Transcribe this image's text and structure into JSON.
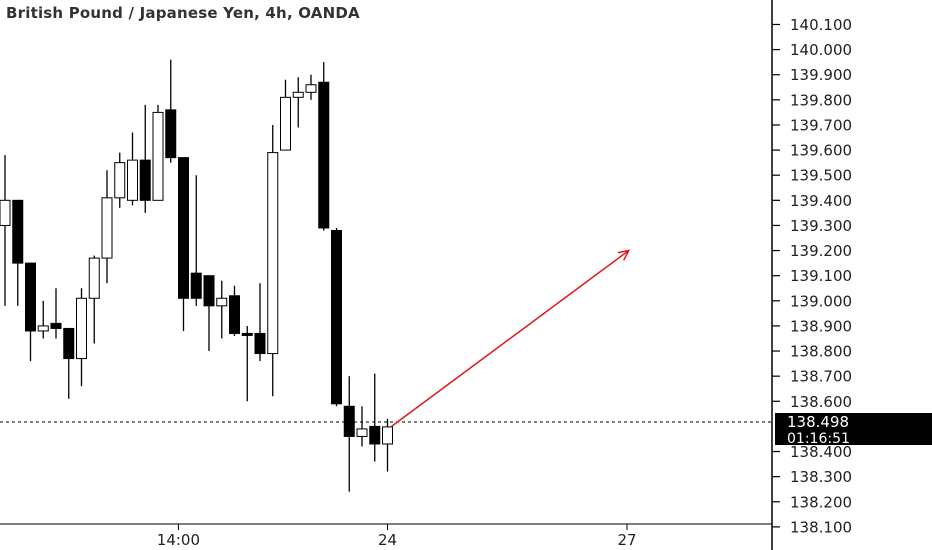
{
  "header": {
    "title": "British Pound / Japanese Yen, 4h, OANDA"
  },
  "colors": {
    "bull": "#ffffff",
    "bear": "#000000",
    "line": "#000000",
    "arrow": "#e3161b",
    "price_label_bg": "#000000",
    "price_label_text": "#ffffff"
  },
  "price_axis": {
    "ticks": [
      "140.100",
      "140.000",
      "139.900",
      "139.800",
      "139.700",
      "139.600",
      "139.500",
      "139.400",
      "139.300",
      "139.200",
      "139.100",
      "139.000",
      "138.900",
      "138.800",
      "138.700",
      "138.600",
      "138.400",
      "138.300",
      "138.200",
      "138.100"
    ]
  },
  "time_axis": {
    "labels": [
      "14:00",
      "24",
      "27"
    ]
  },
  "last_price": {
    "value": "138.498",
    "countdown": "01:16:51"
  },
  "chart_data": {
    "type": "candlestick",
    "title": "British Pound / Japanese Yen, 4h, OANDA",
    "ylim": [
      138.06,
      140.15
    ],
    "current_price": 138.498,
    "candles": [
      {
        "o": 139.3,
        "h": 139.58,
        "l": 138.98,
        "c": 139.4,
        "bull": true
      },
      {
        "o": 139.4,
        "h": 139.4,
        "l": 138.98,
        "c": 139.15,
        "bull": false
      },
      {
        "o": 139.15,
        "h": 139.15,
        "l": 138.76,
        "c": 138.88,
        "bull": false
      },
      {
        "o": 138.88,
        "h": 139.0,
        "l": 138.85,
        "c": 138.9,
        "bull": true
      },
      {
        "o": 138.91,
        "h": 139.05,
        "l": 138.85,
        "c": 138.89,
        "bull": false
      },
      {
        "o": 138.89,
        "h": 138.89,
        "l": 138.61,
        "c": 138.77,
        "bull": false
      },
      {
        "o": 138.77,
        "h": 139.05,
        "l": 138.66,
        "c": 139.01,
        "bull": true
      },
      {
        "o": 139.01,
        "h": 139.18,
        "l": 138.83,
        "c": 139.17,
        "bull": true
      },
      {
        "o": 139.17,
        "h": 139.52,
        "l": 139.07,
        "c": 139.41,
        "bull": true
      },
      {
        "o": 139.41,
        "h": 139.59,
        "l": 139.37,
        "c": 139.55,
        "bull": true
      },
      {
        "o": 139.4,
        "h": 139.67,
        "l": 139.38,
        "c": 139.56,
        "bull": true
      },
      {
        "o": 139.56,
        "h": 139.78,
        "l": 139.35,
        "c": 139.4,
        "bull": false
      },
      {
        "o": 139.4,
        "h": 139.78,
        "l": 139.4,
        "c": 139.75,
        "bull": true
      },
      {
        "o": 139.76,
        "h": 139.96,
        "l": 139.55,
        "c": 139.57,
        "bull": false
      },
      {
        "o": 139.57,
        "h": 139.57,
        "l": 138.88,
        "c": 139.01,
        "bull": false
      },
      {
        "o": 139.01,
        "h": 139.5,
        "l": 138.98,
        "c": 139.11,
        "bull": false
      },
      {
        "o": 139.1,
        "h": 139.1,
        "l": 138.8,
        "c": 138.98,
        "bull": false
      },
      {
        "o": 138.98,
        "h": 139.08,
        "l": 138.85,
        "c": 139.01,
        "bull": true
      },
      {
        "o": 139.02,
        "h": 139.06,
        "l": 138.86,
        "c": 138.87,
        "bull": false
      },
      {
        "o": 138.87,
        "h": 138.9,
        "l": 138.6,
        "c": 138.87,
        "bull": false
      },
      {
        "o": 138.87,
        "h": 139.07,
        "l": 138.76,
        "c": 138.79,
        "bull": false
      },
      {
        "o": 138.79,
        "h": 139.7,
        "l": 138.62,
        "c": 139.59,
        "bull": true
      },
      {
        "o": 139.6,
        "h": 139.88,
        "l": 139.6,
        "c": 139.81,
        "bull": true
      },
      {
        "o": 139.81,
        "h": 139.89,
        "l": 139.69,
        "c": 139.83,
        "bull": true
      },
      {
        "o": 139.83,
        "h": 139.9,
        "l": 139.8,
        "c": 139.86,
        "bull": true
      },
      {
        "o": 139.87,
        "h": 139.95,
        "l": 139.28,
        "c": 139.29,
        "bull": false
      },
      {
        "o": 139.28,
        "h": 139.29,
        "l": 138.58,
        "c": 138.59,
        "bull": false
      },
      {
        "o": 138.58,
        "h": 138.7,
        "l": 138.24,
        "c": 138.46,
        "bull": false
      },
      {
        "o": 138.46,
        "h": 138.58,
        "l": 138.42,
        "c": 138.49,
        "bull": true
      },
      {
        "o": 138.5,
        "h": 138.71,
        "l": 138.36,
        "c": 138.43,
        "bull": false
      },
      {
        "o": 138.43,
        "h": 138.53,
        "l": 138.32,
        "c": 138.498,
        "bull": true
      }
    ],
    "annotation": {
      "type": "arrow",
      "from": {
        "candle": 30,
        "price": 138.5
      },
      "to": {
        "bar_offset": 19,
        "price": 139.2
      }
    },
    "xlabels": [
      "14:00",
      "24",
      "27"
    ],
    "grid": false
  }
}
